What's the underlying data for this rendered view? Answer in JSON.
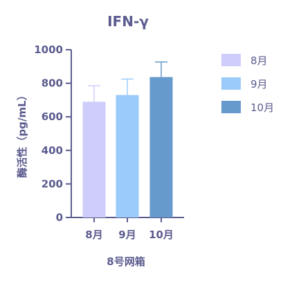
{
  "chart_data": {
    "type": "bar",
    "title": "IFN-γ",
    "xlabel": "8号网箱",
    "ylabel": "酶活性（pg/mL）",
    "categories": [
      "8月",
      "9月",
      "10月"
    ],
    "series": [
      {
        "name": "8月",
        "value": 690,
        "error": 95,
        "color": "#cfcdfb"
      },
      {
        "name": "9月",
        "value": 730,
        "error": 95,
        "color": "#9bcbfb"
      },
      {
        "name": "10月",
        "value": 837,
        "error": 90,
        "color": "#6699cc"
      }
    ],
    "ylim": [
      0,
      1000
    ],
    "yticks": [
      0,
      200,
      400,
      600,
      800,
      1000
    ],
    "grid": false,
    "legend_position": "right",
    "axis_color": "#5b5b8f"
  }
}
